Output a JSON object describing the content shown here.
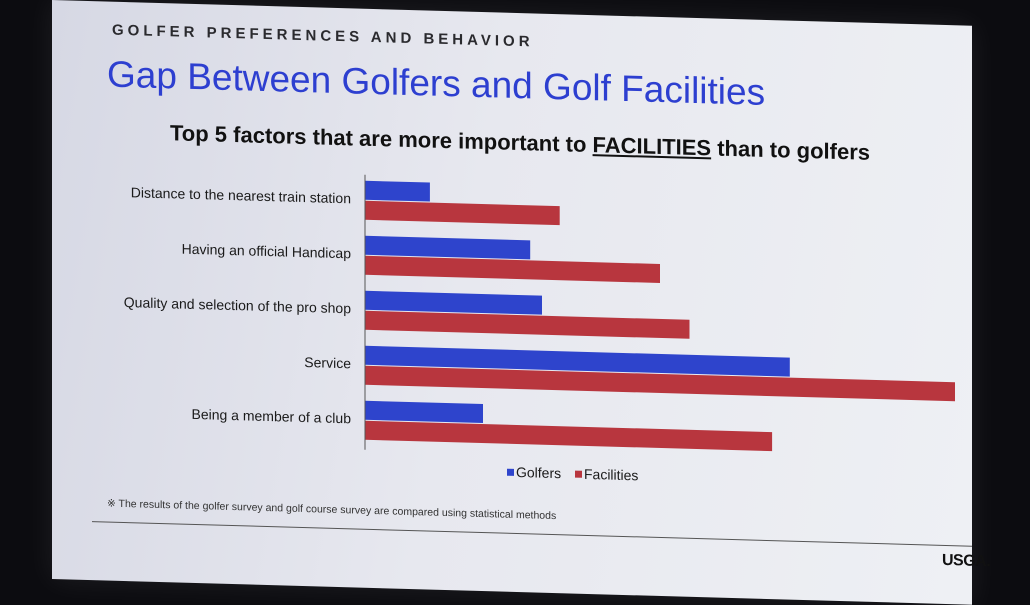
{
  "kicker": "GOLFER PREFERENCES AND BEHAVIOR",
  "title": "Gap Between Golfers and Golf Facilities",
  "subtitle_prefix": "Top 5 factors that are more important to ",
  "subtitle_emph": "FACILITIES",
  "subtitle_suffix": " than to golfers",
  "footnote": "※ The results of the golfer survey and golf course survey are compared using statistical methods",
  "logo": "USGA.",
  "chart_data": {
    "type": "bar",
    "orientation": "horizontal",
    "categories": [
      "Distance to the nearest train station",
      "Having an official Handicap",
      "Quality and selection of the pro shop",
      "Service",
      "Being a member of a club"
    ],
    "series": [
      {
        "name": "Golfers",
        "color": "#2e44cc",
        "values": [
          11,
          28,
          30,
          72,
          20
        ]
      },
      {
        "name": "Facilities",
        "color": "#b8363e",
        "values": [
          33,
          50,
          55,
          100,
          69
        ]
      }
    ],
    "xlim": [
      0,
      100
    ],
    "grid": false,
    "legend": "bottom"
  }
}
